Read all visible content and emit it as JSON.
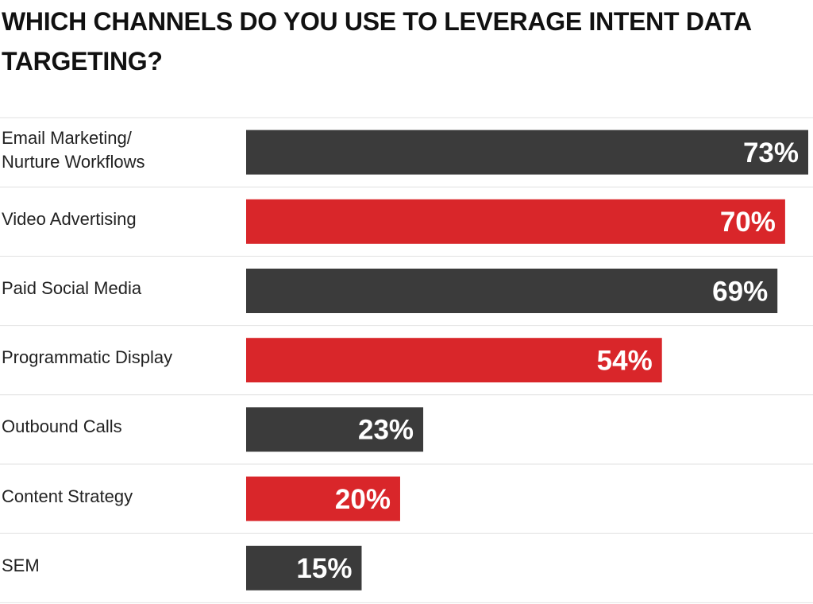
{
  "chart_data": {
    "type": "bar",
    "orientation": "horizontal",
    "title": "WHICH CHANNELS DO YOU USE TO LEVERAGE INTENT DATA TARGETING?",
    "categories": [
      "Email Marketing/\nNurture Workflows",
      "Video Advertising",
      "Paid Social Media",
      "Programmatic Display",
      "Outbound Calls",
      "Content Strategy",
      "SEM"
    ],
    "values": [
      73,
      70,
      69,
      54,
      23,
      20,
      15
    ],
    "value_labels": [
      "73%",
      "70%",
      "69%",
      "54%",
      "23%",
      "20%",
      "15%"
    ],
    "colors": [
      "#3b3b3b",
      "#d9262a",
      "#3b3b3b",
      "#d9262a",
      "#3b3b3b",
      "#d9262a",
      "#3b3b3b"
    ],
    "xlim": [
      0,
      73
    ]
  }
}
